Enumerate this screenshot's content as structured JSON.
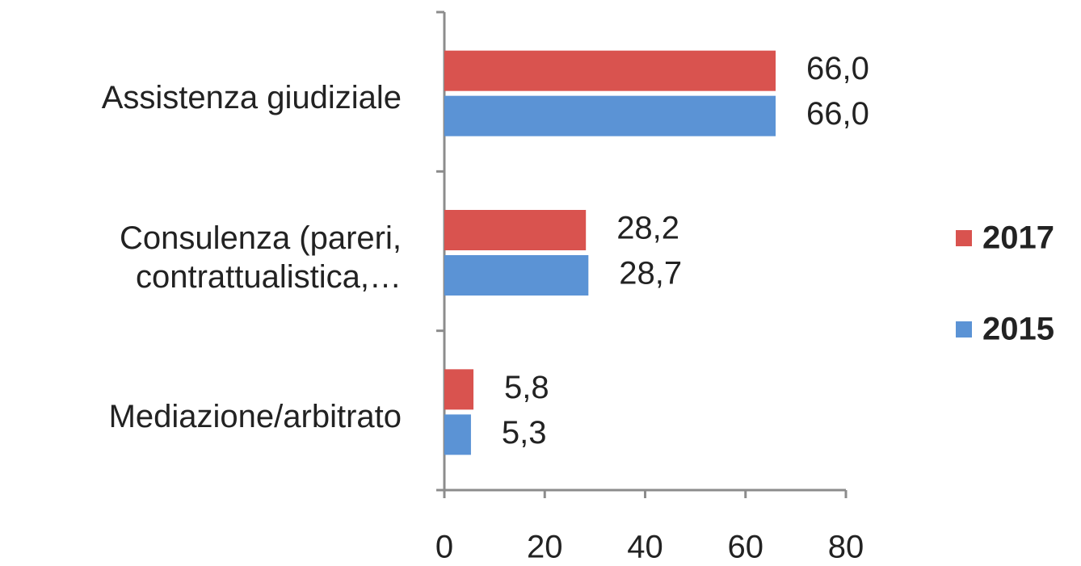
{
  "chart_data": {
    "type": "bar",
    "orientation": "horizontal",
    "categories": [
      "Assistenza giudiziale",
      "Consulenza (pareri,\ncontrattualistica,…",
      "Mediazione/arbitrato"
    ],
    "series": [
      {
        "name": "2017",
        "color": "#d9534f",
        "values": [
          66.0,
          28.2,
          5.8
        ],
        "value_labels": [
          "66,0",
          "28,2",
          "5,8"
        ]
      },
      {
        "name": "2015",
        "color": "#5b93d5",
        "values": [
          66.0,
          28.7,
          5.3
        ],
        "value_labels": [
          "66,0",
          "28,7",
          "5,3"
        ]
      }
    ],
    "xlim": [
      0,
      80
    ],
    "xticks": [
      0,
      20,
      40,
      60,
      80
    ],
    "legend": "right"
  }
}
